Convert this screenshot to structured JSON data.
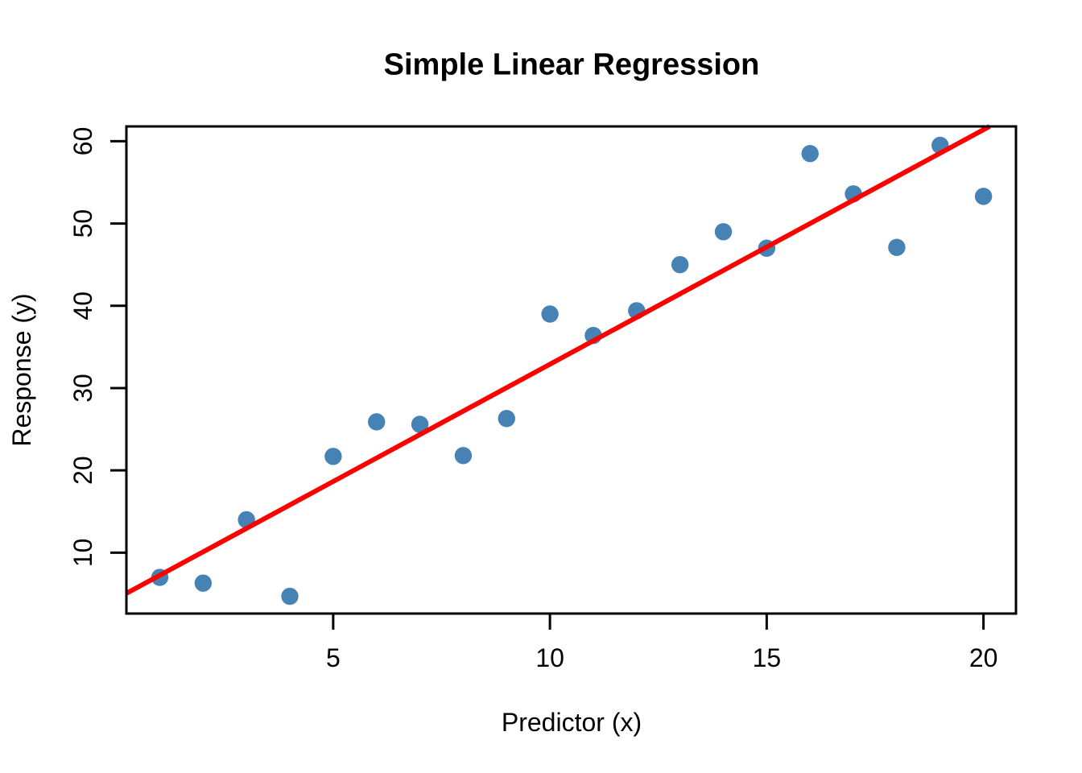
{
  "chart_data": {
    "type": "scatter",
    "title": "Simple Linear Regression",
    "xlabel": "Predictor (x)",
    "ylabel": "Response (y)",
    "x": [
      1,
      2,
      3,
      4,
      5,
      6,
      7,
      8,
      9,
      10,
      11,
      12,
      13,
      14,
      15,
      16,
      17,
      18,
      19,
      20
    ],
    "y": [
      7.0,
      6.3,
      14.0,
      4.7,
      21.7,
      25.9,
      25.6,
      21.8,
      26.3,
      39.0,
      36.4,
      39.4,
      45.0,
      49.0,
      47.0,
      58.5,
      53.6,
      47.1,
      59.5,
      53.3
    ],
    "x_ticks": [
      5,
      10,
      15,
      20
    ],
    "y_ticks": [
      10,
      20,
      30,
      40,
      50,
      60
    ],
    "xlim": [
      0.23,
      20.75
    ],
    "ylim": [
      2.6,
      61.8
    ],
    "grid": false,
    "legend": "none",
    "regression_line": {
      "slope": 2.85,
      "intercept": 4.4
    },
    "colors": {
      "point": "#4682B4",
      "regression_line": "#FF0000",
      "axis": "#000000",
      "background": "#FFFFFF"
    }
  }
}
